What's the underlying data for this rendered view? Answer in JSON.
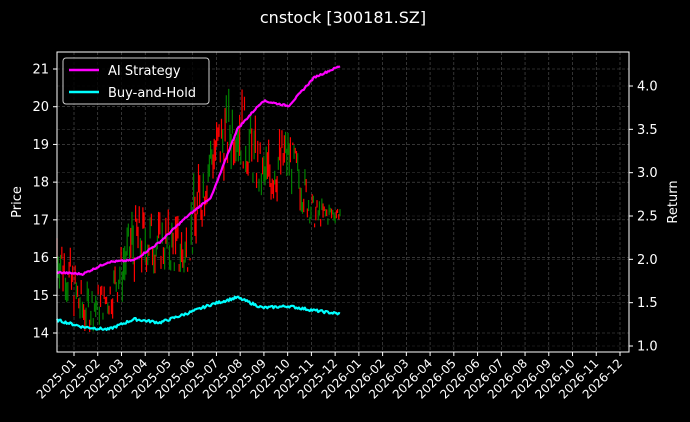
{
  "title": "cnstock [300181.SZ]",
  "colors": {
    "background": "#000000",
    "ai_strategy": "#ff00ff",
    "buy_and_hold": "#00ffff",
    "candle_up": "#008000",
    "candle_down": "#ff0000",
    "grid": "#555555",
    "axis": "#ffffff"
  },
  "legend": {
    "items": [
      {
        "label": "AI Strategy",
        "color": "#ff00ff"
      },
      {
        "label": "Buy-and-Hold",
        "color": "#00ffff"
      }
    ]
  },
  "chart_data": {
    "type": "line",
    "title": "cnstock [300181.SZ]",
    "xlabel": "",
    "ylabel": "Price",
    "ylabel_right": "Return",
    "ylim": [
      13.55,
      21.45
    ],
    "ylim_right": [
      0.93,
      4.38
    ],
    "yticks": [
      14,
      15,
      16,
      17,
      18,
      19,
      20,
      21
    ],
    "yticks_right": [
      1.0,
      1.5,
      2.0,
      2.5,
      3.0,
      3.5,
      4.0
    ],
    "yticks_right_labels": [
      "1.0",
      "1.5",
      "2.0",
      "2.5",
      "3.0",
      "3.5",
      "4.0"
    ],
    "xticks": [
      "2025-01",
      "2025-02",
      "2025-03",
      "2025-04",
      "2025-05",
      "2025-06",
      "2025-07",
      "2025-08",
      "2025-09",
      "2025-10",
      "2025-11",
      "2025-12",
      "2026-01",
      "2026-02",
      "2026-03",
      "2026-04",
      "2026-05",
      "2026-06",
      "2026-07",
      "2026-08",
      "2026-09",
      "2026-10",
      "2026-11",
      "2026-12"
    ],
    "grid": true,
    "legend_position": "upper left",
    "x": [
      "2025-01",
      "2025-02",
      "2025-03",
      "2025-04",
      "2025-05",
      "2025-06",
      "2025-07",
      "2025-08",
      "2025-09",
      "2025-10",
      "2025-11",
      "2025-12"
    ],
    "price_range_approx": {
      "categories": [
        "2025-01",
        "2025-02",
        "2025-03",
        "2025-04",
        "2025-05",
        "2025-06",
        "2025-07",
        "2025-08",
        "2025-09",
        "2025-10",
        "2025-11",
        "2025-12"
      ],
      "high": [
        17.2,
        15.4,
        15.2,
        17.4,
        17.2,
        18.1,
        19.2,
        21.1,
        19.6,
        19.3,
        17.8,
        17.3
      ],
      "low": [
        15.3,
        14.0,
        14.1,
        15.1,
        15.7,
        15.6,
        17.5,
        18.6,
        17.6,
        17.4,
        16.8,
        16.9
      ],
      "close": [
        16.2,
        14.6,
        14.9,
        16.5,
        16.4,
        16.0,
        18.7,
        19.6,
        18.0,
        18.8,
        17.1,
        17.2
      ]
    },
    "series": [
      {
        "name": "AI Strategy",
        "axis": "right",
        "color": "#ff00ff",
        "values": [
          1.85,
          1.83,
          1.97,
          1.99,
          2.2,
          2.48,
          2.72,
          3.5,
          3.83,
          3.77,
          4.1,
          4.23
        ]
      },
      {
        "name": "Buy-and-Hold",
        "axis": "right",
        "color": "#00ffff",
        "values": [
          1.3,
          1.22,
          1.19,
          1.31,
          1.27,
          1.37,
          1.48,
          1.56,
          1.44,
          1.46,
          1.41,
          1.37
        ]
      }
    ]
  }
}
